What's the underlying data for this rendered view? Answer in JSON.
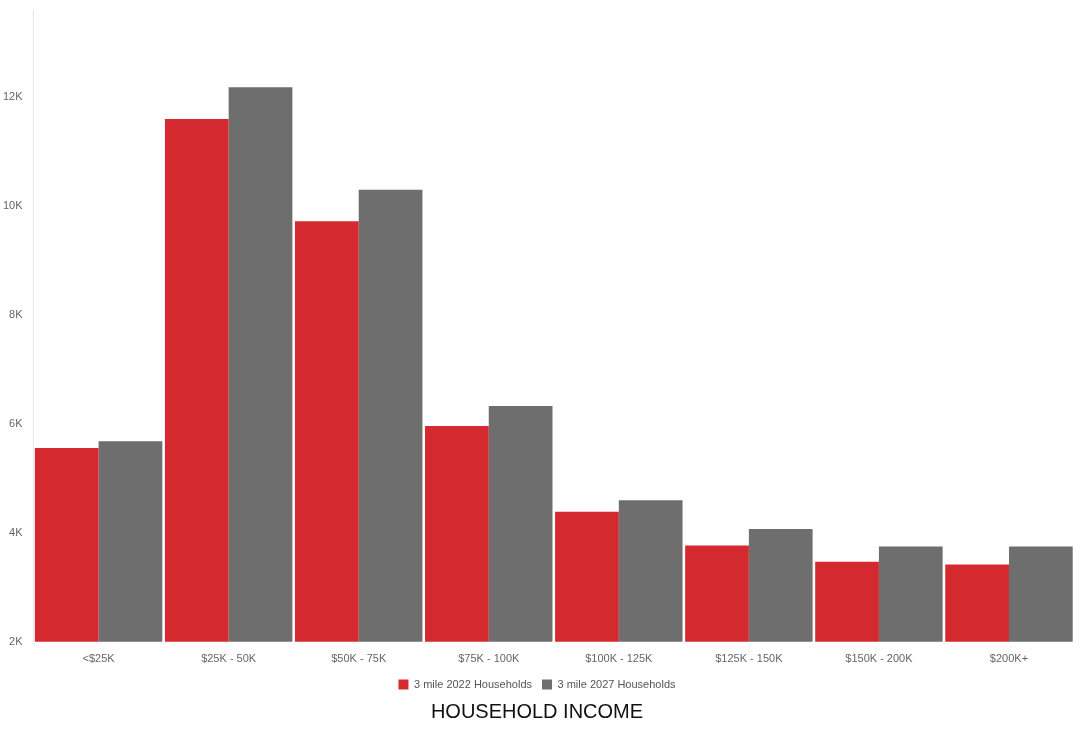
{
  "chart_data": {
    "type": "bar",
    "title": "HOUSEHOLD INCOME",
    "categories": [
      "<$25K",
      "$25K - 50K",
      "$50K - 75K",
      "$75K - 100K",
      "$100K - 125K",
      "$125K - 150K",
      "$150K - 200K",
      "$200K+"
    ],
    "series": [
      {
        "name": "3 mile 2022 Households",
        "color": "#d42a2f",
        "values": [
          5560,
          11600,
          9720,
          5960,
          4390,
          3770,
          3470,
          3420
        ]
      },
      {
        "name": "3 mile 2027 Households",
        "color": "#6e6e6e",
        "values": [
          5680,
          12180,
          10300,
          6330,
          4600,
          4070,
          3750,
          3750
        ]
      }
    ],
    "ylim": [
      2000,
      13600
    ],
    "yticks": [
      {
        "value": 2000,
        "label": "2K"
      },
      {
        "value": 4000,
        "label": "4K"
      },
      {
        "value": 6000,
        "label": "6K"
      },
      {
        "value": 8000,
        "label": "8K"
      },
      {
        "value": 10000,
        "label": "10K"
      },
      {
        "value": 12000,
        "label": "12K"
      }
    ],
    "grid": false,
    "legend": "bottom"
  }
}
